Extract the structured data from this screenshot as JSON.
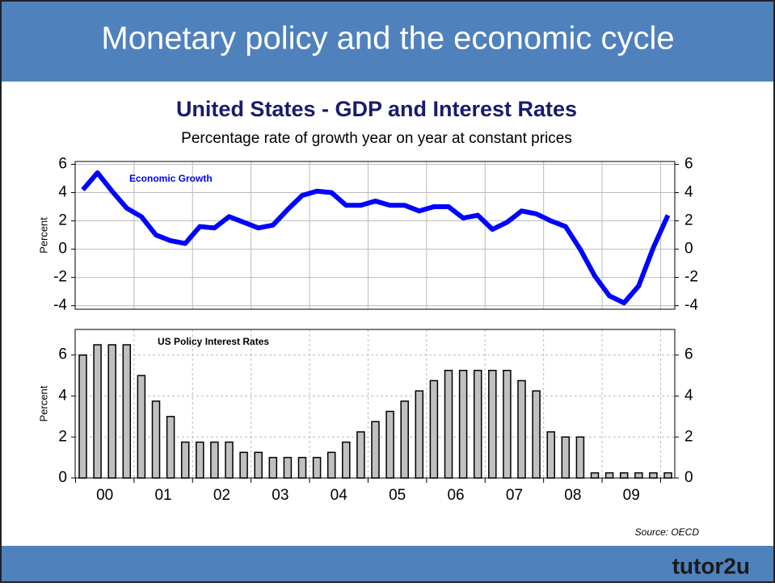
{
  "header": {
    "title": "Monetary policy and the economic cycle"
  },
  "figure": {
    "title": "United States - GDP and Interest Rates",
    "subtitle": "Percentage rate of growth year on year at constant prices",
    "source": "Source: OECD"
  },
  "logo": "tutor2u",
  "chart_data": [
    {
      "type": "line",
      "ylabel": "Percent",
      "ylim": [
        -4.25,
        6.2
      ],
      "yticks": [
        -4,
        -2,
        0,
        2,
        4,
        6
      ],
      "grid": true,
      "series": [
        {
          "name": "Economic Growth",
          "color": "#0000ff",
          "values": [
            4.2,
            5.4,
            4.1,
            2.9,
            2.3,
            1.0,
            0.6,
            0.4,
            1.6,
            1.5,
            2.3,
            1.9,
            1.5,
            1.7,
            2.8,
            3.8,
            4.1,
            4.0,
            3.1,
            3.1,
            3.4,
            3.1,
            3.1,
            2.7,
            3.0,
            3.0,
            2.2,
            2.4,
            1.4,
            1.9,
            2.7,
            2.5,
            2.0,
            1.6,
            0.0,
            -1.9,
            -3.3,
            -3.8,
            -2.6,
            0.1,
            2.4
          ]
        }
      ]
    },
    {
      "type": "bar",
      "ylabel": "Percent",
      "ylim": [
        0,
        7.25
      ],
      "yticks": [
        0,
        2,
        4,
        6
      ],
      "grid": true,
      "x_labels": [
        "00",
        "01",
        "02",
        "03",
        "04",
        "05",
        "06",
        "07",
        "08",
        "09"
      ],
      "series": [
        {
          "name": "US Policy Interest Rates",
          "color": "#c0c0c0",
          "values": [
            6,
            6.5,
            6.5,
            6.5,
            5,
            3.75,
            3,
            1.75,
            1.75,
            1.75,
            1.75,
            1.25,
            1.25,
            1,
            1,
            1,
            1,
            1.25,
            1.75,
            2.25,
            2.75,
            3.25,
            3.75,
            4.25,
            4.75,
            5.25,
            5.25,
            5.25,
            5.25,
            5.25,
            4.75,
            4.25,
            2.25,
            2,
            2,
            0.25,
            0.25,
            0.25,
            0.25,
            0.25,
            0.25
          ]
        }
      ]
    }
  ]
}
